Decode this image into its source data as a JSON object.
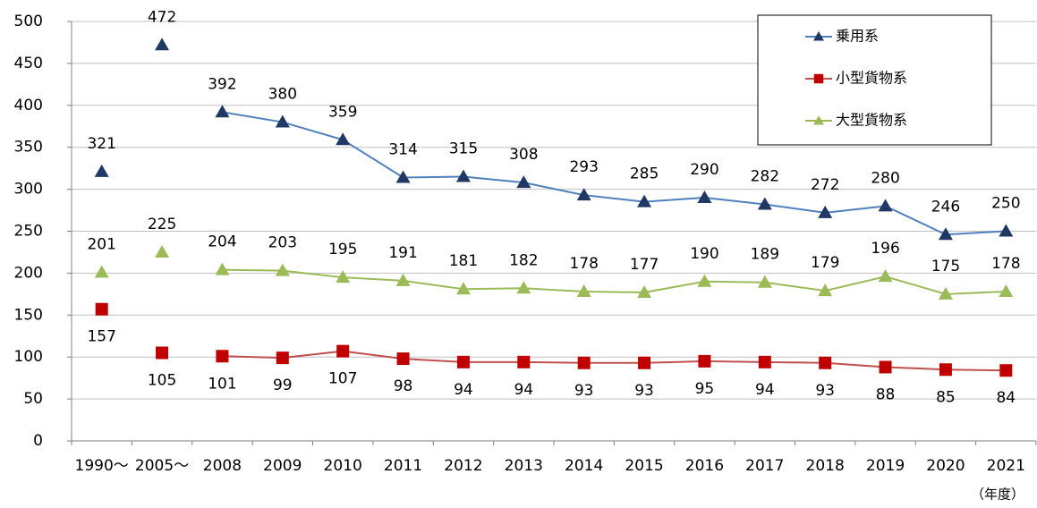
{
  "chart_data": {
    "type": "line",
    "categories": [
      "1990～",
      "2005～",
      "2008",
      "2009",
      "2010",
      "2011",
      "2012",
      "2013",
      "2014",
      "2015",
      "2016",
      "2017",
      "2018",
      "2019",
      "2020",
      "2021"
    ],
    "x_axis_label": "（年度）",
    "line_start_index": 2,
    "series": [
      {
        "name": "乗用系",
        "color": "#4f81bd",
        "marker_color": "#1f3864",
        "marker": "triangle",
        "label_position": "above",
        "values": [
          321,
          472,
          392,
          380,
          359,
          314,
          315,
          308,
          293,
          285,
          290,
          282,
          272,
          280,
          246,
          250
        ]
      },
      {
        "name": "小型貨物系",
        "color": "#c0504d",
        "marker_color": "#c00000",
        "marker": "square",
        "label_position": "below",
        "values": [
          157,
          105,
          101,
          99,
          107,
          98,
          94,
          94,
          93,
          93,
          95,
          94,
          93,
          88,
          85,
          84
        ]
      },
      {
        "name": "大型貨物系",
        "color": "#9bbb59",
        "marker_color": "#9bbb59",
        "marker": "triangle",
        "label_position": "above",
        "values": [
          201,
          225,
          204,
          203,
          195,
          191,
          181,
          182,
          178,
          177,
          190,
          189,
          179,
          196,
          175,
          178
        ]
      }
    ],
    "ylim": [
      0,
      500
    ],
    "yticks": [
      0,
      50,
      100,
      150,
      200,
      250,
      300,
      350,
      400,
      450,
      500
    ],
    "grid": true,
    "legend": "upper-right"
  }
}
